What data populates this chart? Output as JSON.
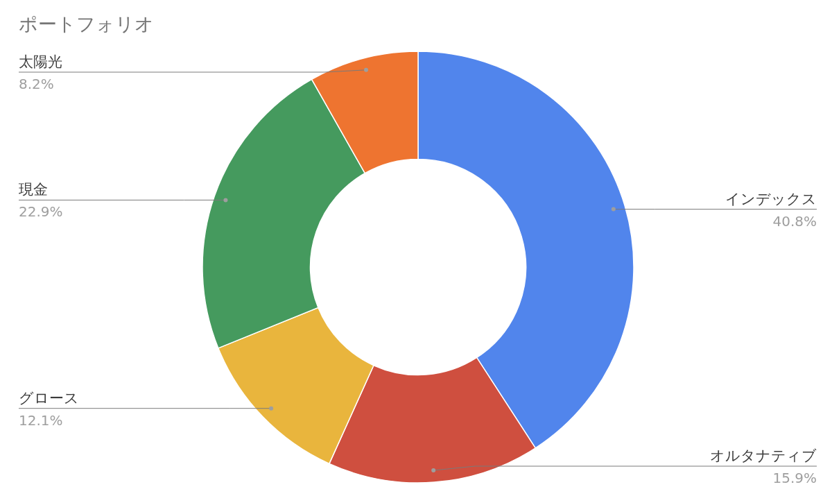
{
  "chart_data": {
    "type": "donut",
    "title": "ポートフォリオ",
    "categories": [
      "インデックス",
      "オルタナティブ",
      "グロース",
      "現金",
      "太陽光"
    ],
    "values": [
      40.8,
      15.9,
      12.1,
      22.9,
      8.2
    ],
    "colors": [
      "#5185ec",
      "#cf4f3f",
      "#e9b53d",
      "#459a5e",
      "#ee7430"
    ],
    "value_labels": [
      "40.8%",
      "15.9%",
      "12.1%",
      "22.9%",
      "8.2%"
    ]
  }
}
